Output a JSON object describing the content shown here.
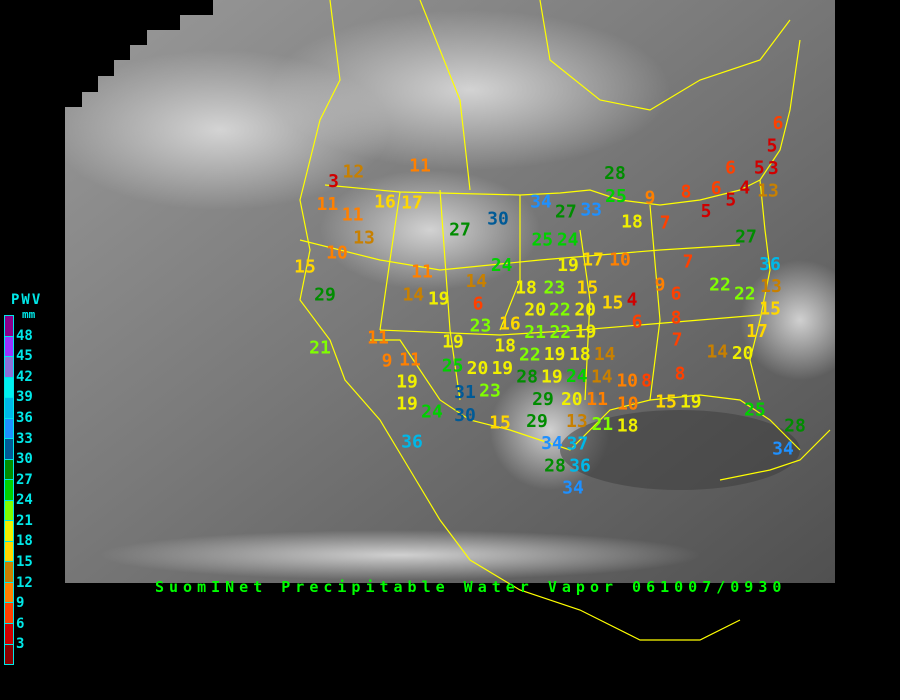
{
  "title": "SuomINet Precipitable Water Vapor 061007/0930",
  "legend": {
    "title": "PWV",
    "unit": "mm",
    "labels": [
      "48",
      "45",
      "42",
      "39",
      "36",
      "33",
      "30",
      "27",
      "24",
      "21",
      "18",
      "15",
      "12",
      "9",
      "6",
      "3"
    ],
    "colors": [
      "#8b008b",
      "#9933ff",
      "#8a70d8",
      "#00f0f0",
      "#00b8e8",
      "#1e90ff",
      "#005a96",
      "#008c00",
      "#00d000",
      "#80ff00",
      "#f0f000",
      "#ffd700",
      "#c88000",
      "#ff8000",
      "#ff4000",
      "#d00000",
      "#8b0000"
    ]
  },
  "map": {
    "border_color": "#ffff00"
  },
  "stations": [
    12,
    3,
    11,
    11,
    16,
    17,
    11,
    13,
    10,
    15,
    29,
    27,
    30,
    34,
    27,
    33,
    25,
    24,
    24,
    11,
    14,
    14,
    6,
    19,
    18,
    23,
    20,
    15,
    15,
    4,
    6,
    23,
    16,
    20,
    22,
    21,
    19,
    18,
    22,
    22,
    19,
    19,
    18,
    14,
    25,
    20,
    19,
    28,
    24,
    14,
    19,
    23,
    20,
    11,
    10,
    10,
    8,
    31,
    30,
    29,
    29,
    15,
    13,
    21,
    18,
    34,
    37,
    36,
    28,
    34,
    36,
    19,
    19,
    24,
    11,
    9,
    11,
    21,
    19,
    17,
    10,
    28,
    25,
    9,
    8,
    18,
    7,
    6,
    6,
    5,
    5,
    4,
    13,
    6,
    5,
    3,
    5,
    27,
    36,
    7,
    9,
    6,
    22,
    22,
    13,
    15,
    17,
    8,
    7,
    14,
    20,
    8,
    15,
    19,
    25,
    28,
    34
  ]
}
